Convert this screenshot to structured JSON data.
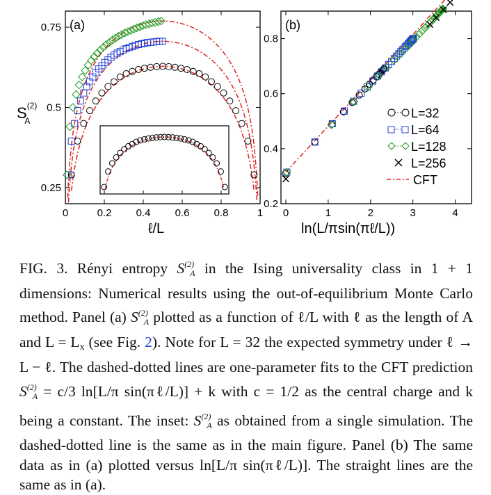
{
  "chart_data": [
    {
      "type": "scatter",
      "panel_label": "(a)",
      "xlabel": "ℓ/L",
      "ylabel": "S_A^(2)",
      "xlim": [
        0,
        1
      ],
      "ylim": [
        0.2,
        0.8
      ],
      "x_ticks": [
        "0",
        "0.2",
        "0.4",
        "0.6",
        "0.8",
        "1"
      ],
      "y_ticks": [
        "0.25",
        "0.5",
        "0.75"
      ],
      "series": [
        {
          "L": 32,
          "marker": "circle",
          "color": "#000000",
          "x": [
            0.031,
            0.0625,
            0.094,
            0.125,
            0.156,
            0.1875,
            0.219,
            0.25,
            0.281,
            0.3125,
            0.344,
            0.375,
            0.406,
            0.4375,
            0.469,
            0.5,
            0.531,
            0.5625,
            0.594,
            0.625,
            0.656,
            0.6875,
            0.719,
            0.75,
            0.781,
            0.8125,
            0.844,
            0.875,
            0.906,
            0.9375,
            0.969
          ],
          "y": [
            0.29,
            0.395,
            0.45,
            0.49,
            0.52,
            0.545,
            0.565,
            0.58,
            0.595,
            0.605,
            0.612,
            0.618,
            0.622,
            0.625,
            0.627,
            0.628,
            0.627,
            0.625,
            0.622,
            0.618,
            0.612,
            0.605,
            0.595,
            0.58,
            0.565,
            0.545,
            0.52,
            0.49,
            0.45,
            0.395,
            0.29
          ]
        },
        {
          "L": 64,
          "marker": "square",
          "color": "#1f3fd6",
          "x": [
            0.016,
            0.031,
            0.047,
            0.0625,
            0.078,
            0.094,
            0.109,
            0.125,
            0.141,
            0.156,
            0.172,
            0.1875,
            0.203,
            0.219,
            0.234,
            0.25,
            0.266,
            0.281,
            0.297,
            0.3125,
            0.328,
            0.344,
            0.359,
            0.375,
            0.391,
            0.406,
            0.422,
            0.4375,
            0.453,
            0.469,
            0.484,
            0.5
          ],
          "y": [
            0.29,
            0.395,
            0.45,
            0.49,
            0.52,
            0.545,
            0.565,
            0.58,
            0.595,
            0.608,
            0.62,
            0.63,
            0.64,
            0.648,
            0.656,
            0.663,
            0.669,
            0.674,
            0.679,
            0.683,
            0.687,
            0.69,
            0.693,
            0.696,
            0.698,
            0.7,
            0.702,
            0.703,
            0.704,
            0.705,
            0.706,
            0.706
          ]
        },
        {
          "L": 128,
          "marker": "diamond",
          "color": "#1f9a1f",
          "x": [
            0.008,
            0.023,
            0.039,
            0.055,
            0.07,
            0.086,
            0.102,
            0.117,
            0.133,
            0.148,
            0.164,
            0.18,
            0.195,
            0.211,
            0.227,
            0.242,
            0.258,
            0.273,
            0.289,
            0.305,
            0.32,
            0.336,
            0.352,
            0.367,
            0.383,
            0.398,
            0.414,
            0.43,
            0.445,
            0.461,
            0.477,
            0.492
          ],
          "y": [
            0.29,
            0.44,
            0.5,
            0.54,
            0.57,
            0.595,
            0.615,
            0.632,
            0.646,
            0.658,
            0.669,
            0.679,
            0.688,
            0.696,
            0.703,
            0.71,
            0.716,
            0.722,
            0.727,
            0.732,
            0.736,
            0.74,
            0.744,
            0.748,
            0.751,
            0.755,
            0.758,
            0.76,
            0.763,
            0.765,
            0.767,
            0.769
          ]
        }
      ],
      "inset": {
        "series": "L=32 (single simulation)",
        "marker": "circle",
        "fit": "CFT"
      }
    },
    {
      "type": "scatter",
      "panel_label": "(b)",
      "xlabel": "ln(L/πsin(πℓ/L))",
      "xlim": [
        0,
        4.5
      ],
      "ylim": [
        0.2,
        0.9
      ],
      "x_ticks": [
        "0",
        "1",
        "2",
        "3",
        "4"
      ],
      "y_ticks": [
        "0.2",
        "0.4",
        "0.6",
        "0.8"
      ],
      "legend": {
        "placement": "right-middle",
        "entries": [
          "L=32",
          "L=64",
          "L=128",
          "L=256",
          "CFT"
        ]
      },
      "fit_line": {
        "slope": 0.1667,
        "intercept": 0.315
      }
    }
  ],
  "caption": {
    "p1": "FIG. 3. Rényi entropy ",
    "p2": " in the Ising universality class in 1 + 1 dimensions: Numerical results using the out-of-equilibrium Monte Carlo method. Panel (a) ",
    "p3": " plotted as a function of ℓ/L with ℓ as the length of A and L = L",
    "p3sub": "x",
    "p4": " (see Fig. ",
    "figref": "2",
    "p5": "). Note for L = 32 the expected symmetry under ℓ → L − ℓ. The dashed-dotted lines are one-parameter fits to the CFT prediction ",
    "p6": " = c/3 ln[L/π sin(πℓ/L)] + k with c = 1/2 as the central charge and k being a constant. The inset: ",
    "p7": " as obtained from a single simulation. The dashed-dotted line is the same as in the main figure. Panel (b) The same data as in (a) plotted versus ln[L/π sin(πℓ/L)]. The straight lines are the same as in (a).",
    "sym_S": "S",
    "sym_sup": "(2)",
    "sym_sub": "A"
  }
}
